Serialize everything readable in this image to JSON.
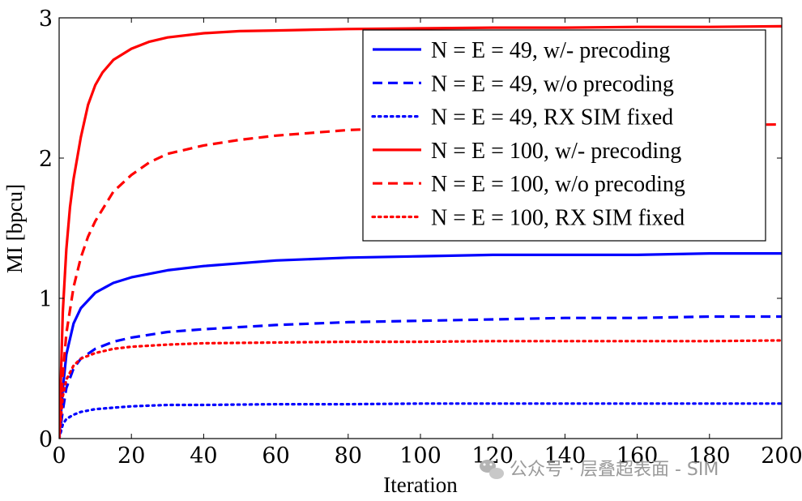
{
  "chart_data": {
    "type": "line",
    "xlabel": "Iteration",
    "ylabel": "MI [bpcu]",
    "xlim": [
      0,
      200
    ],
    "ylim": [
      0,
      3
    ],
    "xticks": [
      0,
      20,
      40,
      60,
      80,
      100,
      120,
      140,
      160,
      180,
      200
    ],
    "yticks": [
      0,
      1,
      2,
      3
    ],
    "grid": false,
    "legend_position": "top-right",
    "series": [
      {
        "name": "N = E = 49, w/- precoding",
        "legend_math": "N = E = 49,",
        "legend_rest": " w/- precoding",
        "color": "#0000ff",
        "style": "solid",
        "x": [
          0,
          1,
          2,
          4,
          6,
          10,
          15,
          20,
          30,
          40,
          60,
          80,
          100,
          120,
          140,
          160,
          180,
          200
        ],
        "y": [
          0.0,
          0.35,
          0.6,
          0.82,
          0.93,
          1.04,
          1.11,
          1.15,
          1.2,
          1.23,
          1.27,
          1.29,
          1.3,
          1.31,
          1.31,
          1.31,
          1.32,
          1.32
        ]
      },
      {
        "name": "N = E = 49, w/o precoding",
        "legend_math": "N = E = 49,",
        "legend_rest": " w/o precoding",
        "color": "#0000ff",
        "style": "dashed",
        "x": [
          0,
          1,
          2,
          4,
          6,
          10,
          15,
          20,
          30,
          40,
          60,
          80,
          100,
          120,
          140,
          160,
          180,
          200
        ],
        "y": [
          0.0,
          0.2,
          0.36,
          0.5,
          0.57,
          0.64,
          0.69,
          0.72,
          0.76,
          0.78,
          0.81,
          0.83,
          0.84,
          0.85,
          0.86,
          0.86,
          0.87,
          0.87
        ]
      },
      {
        "name": "N = E = 49, RX SIM fixed",
        "legend_math": "N = E = 49,",
        "legend_rest": " RX SIM fixed",
        "color": "#0000ff",
        "style": "dotted",
        "x": [
          0,
          1,
          2,
          4,
          6,
          10,
          15,
          20,
          30,
          40,
          60,
          80,
          100,
          120,
          140,
          160,
          180,
          200
        ],
        "y": [
          0.0,
          0.1,
          0.14,
          0.17,
          0.19,
          0.21,
          0.22,
          0.23,
          0.24,
          0.24,
          0.245,
          0.245,
          0.25,
          0.25,
          0.25,
          0.25,
          0.25,
          0.25
        ]
      },
      {
        "name": "N = E = 100, w/- precoding",
        "legend_math": "N = E = 100,",
        "legend_rest": " w/- precoding",
        "color": "#ff0000",
        "style": "solid",
        "x": [
          0,
          1,
          2,
          3,
          4,
          6,
          8,
          10,
          12,
          15,
          20,
          25,
          30,
          40,
          50,
          60,
          80,
          100,
          120,
          140,
          160,
          180,
          200
        ],
        "y": [
          0.0,
          0.9,
          1.35,
          1.65,
          1.85,
          2.15,
          2.38,
          2.52,
          2.61,
          2.7,
          2.78,
          2.83,
          2.86,
          2.89,
          2.905,
          2.91,
          2.92,
          2.925,
          2.93,
          2.93,
          2.935,
          2.935,
          2.94
        ]
      },
      {
        "name": "N = E = 100, w/o precoding",
        "legend_math": "N = E = 100,",
        "legend_rest": " w/o precoding",
        "color": "#ff0000",
        "style": "dashed",
        "x": [
          0,
          1,
          2,
          4,
          6,
          8,
          10,
          15,
          20,
          25,
          30,
          40,
          50,
          60,
          80,
          100,
          120,
          140,
          160,
          180,
          200
        ],
        "y": [
          0.0,
          0.45,
          0.75,
          1.08,
          1.29,
          1.44,
          1.55,
          1.76,
          1.88,
          1.97,
          2.03,
          2.09,
          2.13,
          2.16,
          2.2,
          2.22,
          2.23,
          2.23,
          2.235,
          2.235,
          2.24
        ]
      },
      {
        "name": "N = E = 100, RX SIM fixed",
        "legend_math": "N = E = 100,",
        "legend_rest": " RX SIM fixed",
        "color": "#ff0000",
        "style": "dotted",
        "x": [
          0,
          1,
          2,
          4,
          6,
          10,
          15,
          20,
          30,
          40,
          60,
          80,
          100,
          120,
          140,
          160,
          180,
          200
        ],
        "y": [
          0.0,
          0.3,
          0.42,
          0.52,
          0.57,
          0.61,
          0.64,
          0.655,
          0.67,
          0.68,
          0.685,
          0.69,
          0.69,
          0.695,
          0.695,
          0.695,
          0.695,
          0.7
        ]
      }
    ]
  },
  "watermark": {
    "text": "公众号 · 层叠超表面 - SIM",
    "icon": "wechat-icon"
  }
}
